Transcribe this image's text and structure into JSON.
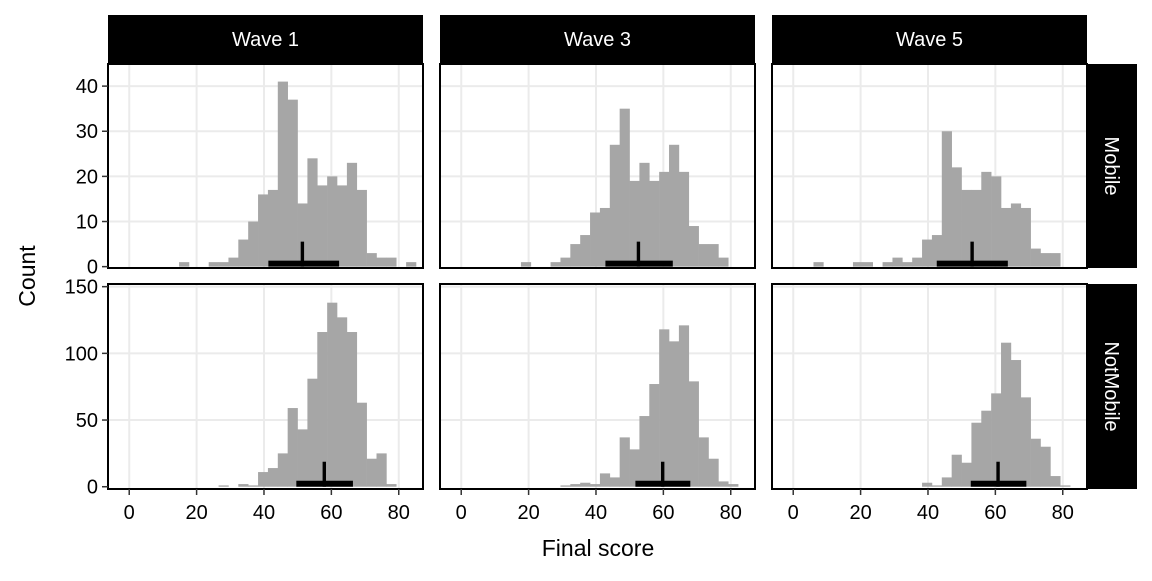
{
  "chart_data": {
    "type": "histogram-facet",
    "xlabel": "Final score",
    "ylabel": "Count",
    "bin_start": 0.15,
    "bin_width": 2.93,
    "columns": [
      "Wave 1",
      "Wave 3",
      "Wave 5"
    ],
    "rows": [
      "Mobile",
      "NotMobile"
    ],
    "x_ticks": [
      "0",
      "20",
      "40",
      "60",
      "80"
    ],
    "x_tick_values": [
      0,
      20,
      40,
      60,
      80
    ],
    "xlim": [
      -6.3,
      87.2
    ],
    "row_axes": [
      {
        "ylim": [
          -0.3,
          44.9
        ],
        "grid": [
          10,
          20,
          30,
          40
        ],
        "ticks": [
          "0",
          "10",
          "20",
          "30",
          "40"
        ],
        "tick_values": [
          0,
          10,
          20,
          30,
          40
        ]
      },
      {
        "ylim": [
          -1.7,
          152
        ],
        "grid": [
          50,
          100,
          150
        ],
        "ticks": [
          "0",
          "50",
          "100",
          "150"
        ],
        "tick_values": [
          0,
          50,
          100,
          150
        ]
      }
    ],
    "panels": [
      {
        "row": 0,
        "col": 0,
        "counts": [
          0,
          0,
          0,
          0,
          0,
          1,
          0,
          0,
          1,
          1,
          2,
          6,
          10,
          16,
          17,
          41,
          37,
          14,
          24,
          18,
          20,
          18,
          23,
          17,
          3,
          2,
          2,
          0,
          1
        ],
        "mean": 51.4,
        "interval": [
          41.3,
          62.3
        ]
      },
      {
        "row": 0,
        "col": 1,
        "counts": [
          0,
          0,
          0,
          0,
          0,
          0,
          1,
          0,
          0,
          1,
          2,
          5,
          7,
          12,
          13,
          27,
          35,
          19,
          23,
          19,
          21,
          27,
          21,
          9,
          5,
          5,
          2,
          0,
          0
        ],
        "mean": 52.6,
        "interval": [
          42.8,
          62.8
        ]
      },
      {
        "row": 0,
        "col": 2,
        "counts": [
          0,
          0,
          1,
          0,
          0,
          0,
          1,
          1,
          0,
          1,
          2,
          1,
          2,
          6,
          7,
          30,
          22,
          17,
          17,
          21,
          20,
          13,
          14,
          13,
          4,
          3,
          3,
          0,
          0
        ],
        "mean": 53.1,
        "interval": [
          42.6,
          63.7
        ]
      },
      {
        "row": 1,
        "col": 0,
        "counts": [
          0,
          0,
          0,
          0,
          0,
          0,
          0,
          0,
          0,
          1,
          0,
          2,
          1,
          11,
          14,
          25,
          59,
          43,
          81,
          116,
          138,
          127,
          116,
          63,
          21,
          25,
          2,
          0,
          0
        ],
        "mean": 57.9,
        "interval": [
          49.6,
          66.4
        ]
      },
      {
        "row": 1,
        "col": 1,
        "counts": [
          0,
          0,
          0,
          0,
          0,
          0,
          0,
          0,
          0,
          0,
          1,
          2,
          3,
          2,
          10,
          7,
          37,
          28,
          53,
          77,
          118,
          109,
          121,
          79,
          37,
          21,
          4,
          2,
          0
        ],
        "mean": 59.8,
        "interval": [
          51.7,
          68.0
        ]
      },
      {
        "row": 1,
        "col": 2,
        "counts": [
          0,
          0,
          0,
          0,
          0,
          0,
          0,
          0,
          0,
          0,
          0,
          0,
          0,
          3,
          1,
          7,
          24,
          18,
          48,
          57,
          70,
          108,
          95,
          67,
          36,
          30,
          8,
          1,
          0
        ],
        "mean": 60.8,
        "interval": [
          52.7,
          69.2
        ]
      }
    ],
    "colors": {
      "bar": "#a6a6a6",
      "grid": "#ebebeb",
      "strip": "#000000",
      "summary": "#000000"
    }
  }
}
